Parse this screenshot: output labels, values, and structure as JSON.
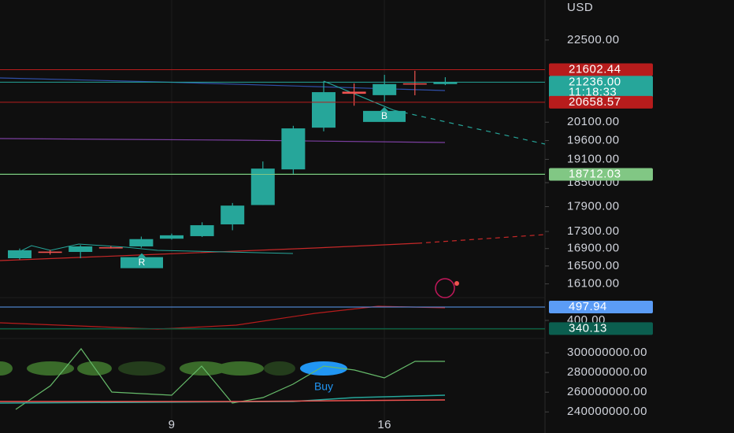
{
  "chart_data": [
    {
      "type": "candlestick",
      "currency": "USD",
      "categories": [
        null,
        null,
        null,
        null,
        null,
        "9",
        null,
        null,
        null,
        null,
        null,
        null,
        "16",
        null,
        null
      ],
      "open": [
        16677,
        16830,
        16822,
        16930,
        16950,
        17130,
        17190,
        17470,
        17940,
        18840,
        19950,
        20960,
        20860,
        21200,
        21180
      ],
      "high": [
        16900,
        16870,
        16980,
        16960,
        17180,
        17250,
        17520,
        17990,
        19045,
        20000,
        21260,
        21200,
        21450,
        21570,
        21380
      ],
      "low": [
        16650,
        16760,
        16677,
        16900,
        16920,
        17110,
        17170,
        17330,
        17940,
        18700,
        19850,
        20560,
        20680,
        20856,
        21150
      ],
      "close": [
        16860,
        16800,
        16950,
        16920,
        17120,
        17210,
        17450,
        17926,
        18860,
        19930,
        20946,
        20900,
        21180,
        21180,
        21236
      ],
      "up_color": "#26a69a",
      "down_color": "#ef5350",
      "log": true,
      "ylim": [
        15800,
        23770
      ],
      "yticks": [
        {
          "value": 22500,
          "label": "22500.00"
        },
        {
          "value": 20100,
          "label": "20100.00"
        },
        {
          "value": 19600,
          "label": "19600.00"
        },
        {
          "value": 19100,
          "label": "19100.00"
        },
        {
          "value": 18500,
          "label": "18500.00"
        },
        {
          "value": 17900,
          "label": "17900.00"
        },
        {
          "value": 17300,
          "label": "17300.00"
        },
        {
          "value": 16900,
          "label": "16900.00"
        },
        {
          "value": 16500,
          "label": "16500.00"
        },
        {
          "value": 16100,
          "label": "16100.00"
        }
      ],
      "price_markers": [
        {
          "value": 21602.44,
          "color": "#b71c1c"
        },
        {
          "value": {
            "value": 21236,
            "label": "21236.00"
          },
          "color": "#26a69a"
        },
        {
          "value": 20658.57,
          "color": "#b71c1c"
        },
        {
          "value": 18712.03,
          "color": "#81c784"
        }
      ],
      "countdown": "11:18:33",
      "signals": [
        "B",
        "R"
      ]
    },
    {
      "type": "line",
      "ylim": [
        279,
        567
      ],
      "yticks": [
        {
          "value": 400,
          "label": "400.00"
        }
      ],
      "price_markers": [
        {
          "value": 497.94,
          "color": "#5b9cf6"
        },
        {
          "value": 340.13,
          "color": "#0b5e4f"
        }
      ]
    },
    {
      "type": "line",
      "ylim": [
        226600000,
        314400000
      ],
      "yticks": [
        {
          "value": 300000000,
          "label": "300000000.00"
        },
        {
          "value": 280000000,
          "label": "280000000.00"
        },
        {
          "value": 260000000,
          "label": "260000000.00"
        },
        {
          "value": 240000000,
          "label": "240000000.00"
        }
      ],
      "signal": "Buy"
    }
  ]
}
